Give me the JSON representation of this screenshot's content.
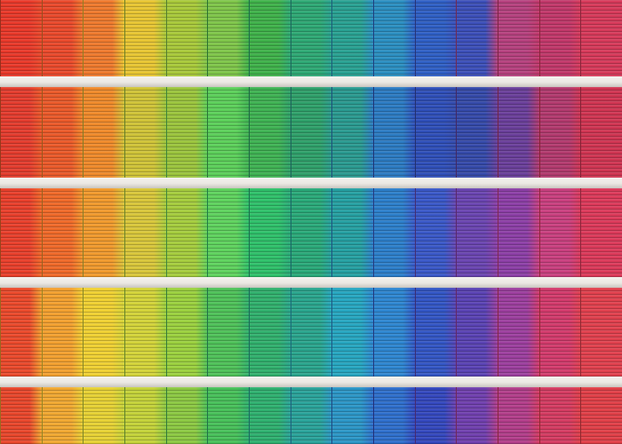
{
  "image": {
    "subject": "facade-of-rainbow-slatted-panels",
    "palette": {
      "band_1": [
        "#e8392a",
        "#e94a2c",
        "#ee7a2e",
        "#e7c533",
        "#a8c83a",
        "#7fc54a",
        "#3fb14a",
        "#2ea874",
        "#29a192",
        "#2b8ec0",
        "#2f5fc4",
        "#3c4fb8",
        "#b5417e",
        "#c1386a",
        "#d63a5a"
      ],
      "band_2": [
        "#e33c2e",
        "#ea5a2a",
        "#ef8a2b",
        "#cfc338",
        "#9bc43d",
        "#5ccf5a",
        "#3fb253",
        "#2fa06a",
        "#2a9a90",
        "#2c7bc2",
        "#2f4fb8",
        "#354aa9",
        "#6a3f9a",
        "#b23a6e",
        "#cf3552"
      ],
      "band_3": [
        "#e8402c",
        "#ef6a2a",
        "#f09a2e",
        "#d8c63b",
        "#a5cc3e",
        "#5fd25e",
        "#2fc06a",
        "#2aa979",
        "#26a0a2",
        "#2d7fca",
        "#3a58c7",
        "#6a45b0",
        "#8c3fa6",
        "#c9407f",
        "#db3a5a"
      ],
      "band_4": [
        "#ea4a2c",
        "#f2a030",
        "#efd033",
        "#d3d33a",
        "#9bd03f",
        "#4fc159",
        "#31b06d",
        "#2aa58d",
        "#27a6c0",
        "#2e86d0",
        "#3356c4",
        "#5a43b3",
        "#9c3f9e",
        "#d23b6c",
        "#e0414e"
      ],
      "band_5": [
        "#e8472c",
        "#f0a832",
        "#e6d135",
        "#c4d23a",
        "#8cc843",
        "#48c05a",
        "#2fb06f",
        "#2aa39a",
        "#2c96c6",
        "#2f6fcc",
        "#3448bd",
        "#7040ae",
        "#b23e8a",
        "#d43c62",
        "#e04048"
      ]
    }
  }
}
